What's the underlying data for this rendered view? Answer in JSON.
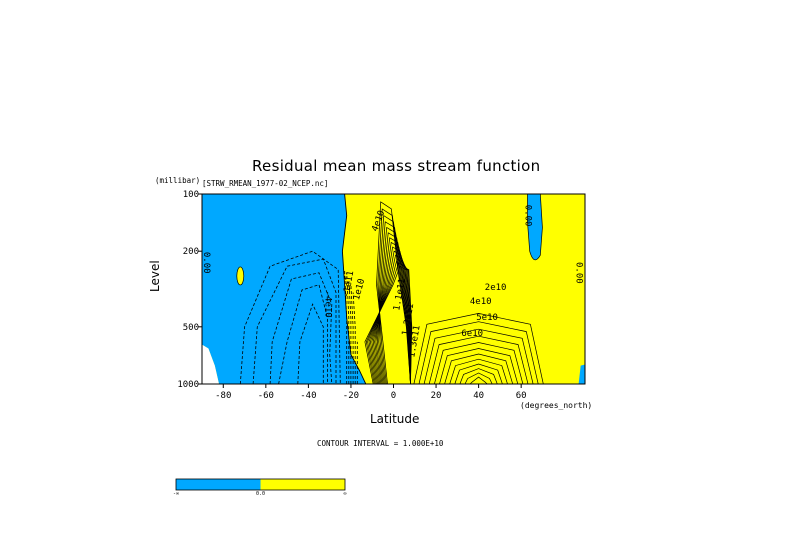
{
  "colors": {
    "negative": "#00a8ff",
    "positive": "#ffff00",
    "line": "#000000"
  },
  "chart_data": {
    "type": "contour",
    "title": "Residual mean mass stream function",
    "subtitle": "[STRW_RMEAN_1977-02_NCEP.nc]",
    "xlabel": "Latitude",
    "xunits": "(degrees_north)",
    "ylabel": "Level",
    "yunits": "(millibar)",
    "xlim": [
      -90,
      90
    ],
    "ylim": [
      1000,
      100
    ],
    "yscale": "log",
    "xticks": [
      "-80",
      "-60",
      "-40",
      "-20",
      "0",
      "20",
      "40",
      "60"
    ],
    "xtick_values": [
      -80,
      -60,
      -40,
      -20,
      0,
      20,
      40,
      60
    ],
    "yticks": [
      "100",
      "200",
      "500",
      "1000"
    ],
    "ytick_values": [
      100,
      200,
      500,
      1000
    ],
    "contour_interval": "CONTOUR INTERVAL = 1.000E+10",
    "contour_labels": [
      "0.00",
      "0.00",
      "0.00",
      "4e10",
      "1e10",
      "2e10",
      "4e10",
      "5e10",
      "6e10",
      "-4e10",
      "-1e11",
      "1.1e11",
      "1.2e11",
      "1.3e11"
    ],
    "colorbar": {
      "ticks": [
        "-∞",
        "0.0",
        "∞"
      ],
      "colors": [
        "#00a8ff",
        "#ffff00"
      ]
    }
  }
}
